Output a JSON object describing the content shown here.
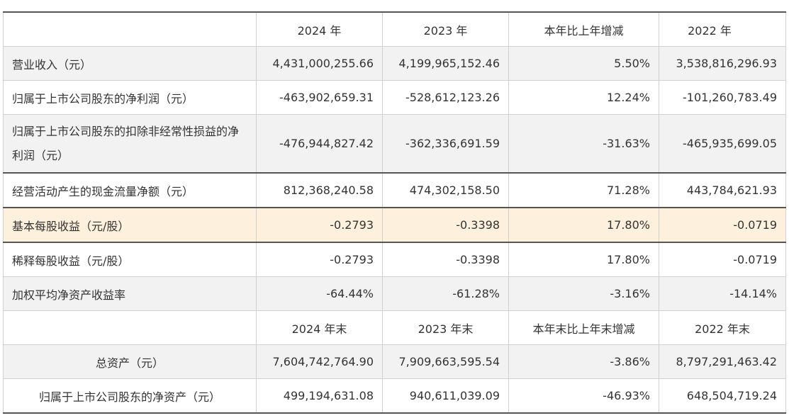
{
  "header": [
    "",
    "2024 年",
    "2023 年",
    "本年比上年增减",
    "2022 年"
  ],
  "rows": [
    {
      "label": "营业收入（元）",
      "values": [
        "4,431,000,255.66",
        "4,199,965,152.46",
        "5.50%",
        "3,538,816,296.93"
      ]
    },
    {
      "label": "归属于上市公司股东的净利润（元）",
      "values": [
        "-463,902,659.31",
        "-528,612,123.26",
        "12.24%",
        "-101,260,783.49"
      ]
    },
    {
      "label": "归属于上市公司股东的扣除非经常性损益的净利润（元）",
      "values": [
        "-476,944,827.42",
        "-362,336,691.59",
        "-31.63%",
        "-465,935,699.05"
      ]
    },
    {
      "label": "经营活动产生的现金流量净额（元）",
      "values": [
        "812,368,240.58",
        "474,302,158.50",
        "71.28%",
        "443,784,621.93"
      ]
    },
    {
      "label": "基本每股收益（元/股）",
      "values": [
        "-0.2793",
        "-0.3398",
        "17.80%",
        "-0.0719"
      ]
    },
    {
      "label": "稀释每股收益（元/股）",
      "values": [
        "-0.2793",
        "-0.3398",
        "17.80%",
        "-0.0719"
      ]
    },
    {
      "label": "加权平均净资产收益率",
      "values": [
        "-64.44%",
        "-61.28%",
        "-3.16%",
        "-14.14%"
      ]
    }
  ],
  "header2": [
    "",
    "2024 年末",
    "2023 年末",
    "本年末比上年末增减",
    "2022 年末"
  ],
  "rows2": [
    {
      "label": "总资产（元）",
      "values": [
        "7,604,742,764.90",
        "7,909,663,595.54",
        "-3.86%",
        "8,797,291,463.42"
      ]
    },
    {
      "label": "归属于上市公司股东的净资产（元）",
      "values": [
        "499,194,631.08",
        "940,611,039.09",
        "-46.93%",
        "648,504,719.24"
      ]
    }
  ],
  "icons": {
    "copy": "copy-icon"
  },
  "colors": {
    "highlight_row": "#fdf0dc",
    "shaded_row": "#f2f2f2",
    "border": "#d0d0d0"
  }
}
